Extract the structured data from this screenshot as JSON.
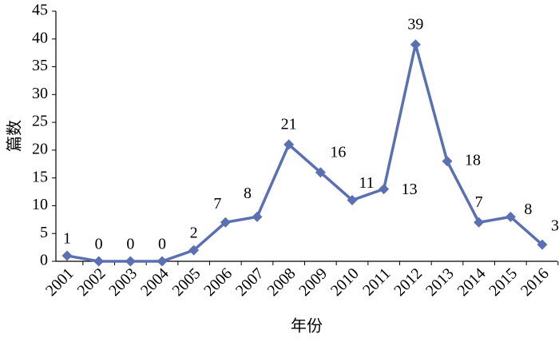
{
  "chart_data": {
    "type": "line",
    "x_label": "年份",
    "y_label": "篇数",
    "categories": [
      "2001",
      "2002",
      "2003",
      "2004",
      "2005",
      "2006",
      "2007",
      "2008",
      "2009",
      "2010",
      "2011",
      "2012",
      "2013",
      "2014",
      "2015",
      "2016"
    ],
    "values": [
      1,
      0,
      0,
      0,
      2,
      7,
      8,
      21,
      16,
      11,
      13,
      39,
      18,
      7,
      8,
      3
    ],
    "color": "#5b6fb3",
    "ylim": [
      0,
      45
    ],
    "yticks": [
      0,
      5,
      10,
      15,
      20,
      25,
      30,
      35,
      40,
      45
    ],
    "grid": false
  }
}
